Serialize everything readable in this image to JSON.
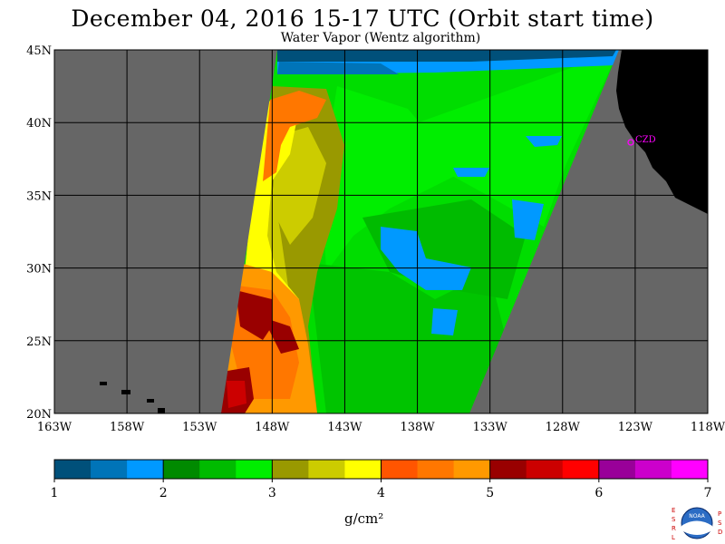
{
  "header": {
    "title": "December 04, 2016  15-17 UTC  (Orbit start time)",
    "subtitle": "Water Vapor (Wentz algorithm)"
  },
  "map": {
    "lat_labels": [
      "45N",
      "40N",
      "35N",
      "30N",
      "25N",
      "20N"
    ],
    "lon_labels": [
      "163W",
      "158W",
      "153W",
      "148W",
      "143W",
      "138W",
      "133W",
      "128W",
      "123W",
      "118W"
    ],
    "station_label": "CZD",
    "colors": {
      "land": "#000000",
      "no_data": "#666666",
      "station": "#ff00ff"
    }
  },
  "colorbar": {
    "tick_labels": [
      "1",
      "2",
      "3",
      "4",
      "5",
      "6",
      "7"
    ],
    "units": "g/cm²",
    "colors": [
      "#00507a",
      "#0074b8",
      "#0099ff",
      "#008a00",
      "#00bb00",
      "#00ee00",
      "#999900",
      "#cccc00",
      "#ffff00",
      "#ff5500",
      "#ff7700",
      "#ff9900",
      "#990000",
      "#cc0000",
      "#ff0000",
      "#990099",
      "#cc00cc",
      "#ff00ff"
    ]
  },
  "logo": {
    "left_letters": [
      "E",
      "S",
      "R",
      "L"
    ],
    "right_letters": [
      "P",
      "S",
      "D"
    ],
    "center_text": "NOAA"
  }
}
